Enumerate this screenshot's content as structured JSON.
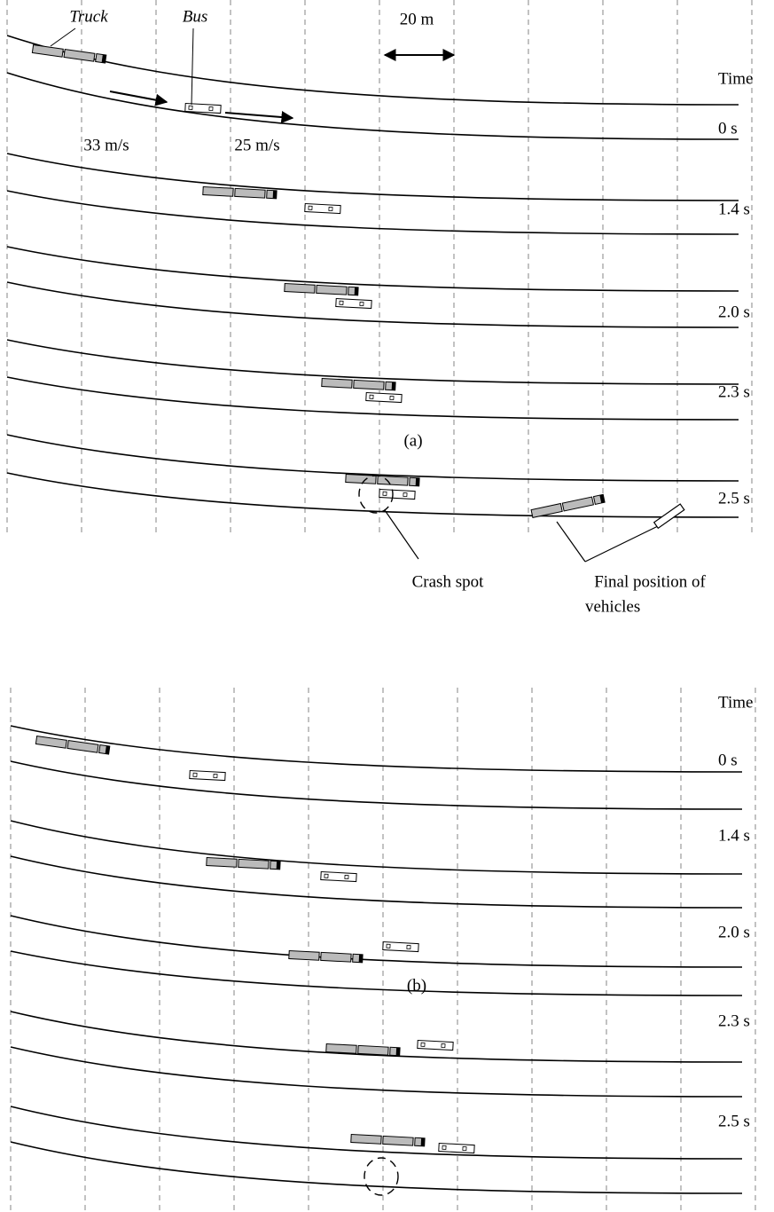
{
  "panels": [
    {
      "label": "(a)",
      "time_header": "Time",
      "times": [
        "0 s",
        "1.4 s",
        "2.0 s",
        "2.3 s",
        "2.5 s"
      ],
      "truck_label": "Truck",
      "bus_label": "Bus",
      "scale": "20 m",
      "truck_speed": "33 m/s",
      "bus_speed": "25 m/s",
      "crash_label": "Crash spot",
      "final_label": [
        "Final position of",
        "vehicles"
      ]
    },
    {
      "label": "(b)",
      "time_header": "Time",
      "times": [
        "0 s",
        "1.4 s",
        "2.0 s",
        "2.3 s",
        "2.5 s"
      ]
    }
  ]
}
